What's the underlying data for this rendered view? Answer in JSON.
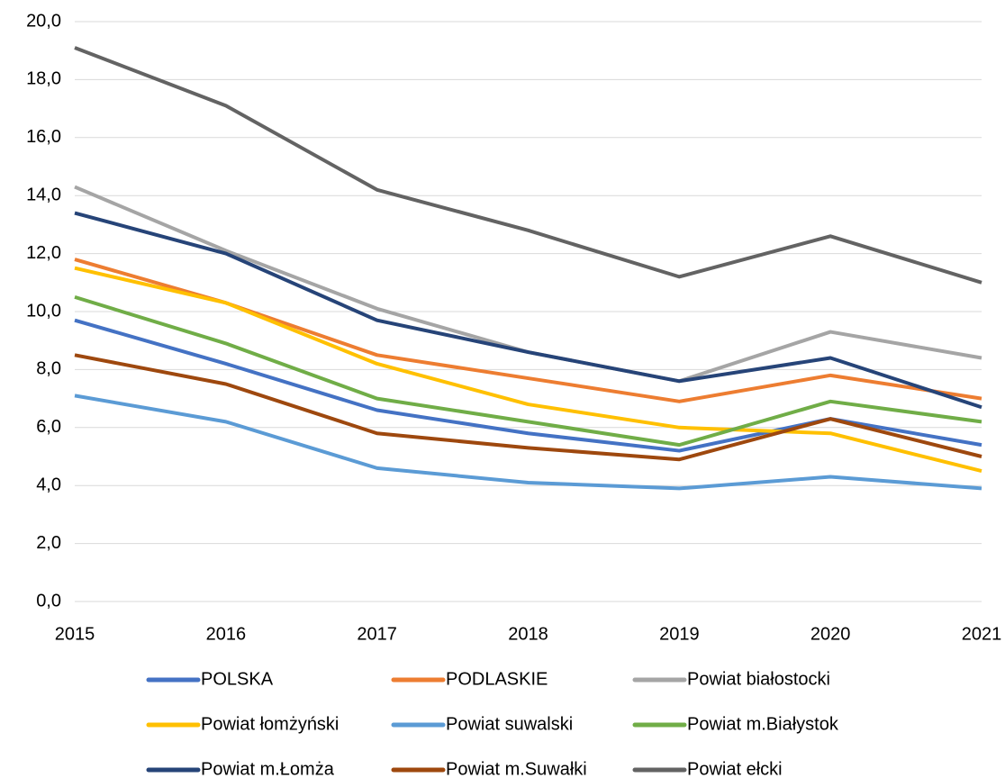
{
  "chart_data": {
    "type": "line",
    "x": [
      2015,
      2016,
      2017,
      2018,
      2019,
      2020,
      2021
    ],
    "xlim": [
      2015,
      2021
    ],
    "xticks": [
      2015,
      2016,
      2017,
      2018,
      2019,
      2020,
      2021
    ],
    "ylim": [
      0,
      20
    ],
    "yticks": [
      {
        "value": 0,
        "label": "0,0"
      },
      {
        "value": 2,
        "label": "2,0"
      },
      {
        "value": 4,
        "label": "4,0"
      },
      {
        "value": 6,
        "label": "6,0"
      },
      {
        "value": 8,
        "label": "8,0"
      },
      {
        "value": 10,
        "label": "10,0"
      },
      {
        "value": 12,
        "label": "12,0"
      },
      {
        "value": 14,
        "label": "14,0"
      },
      {
        "value": 16,
        "label": "16,0"
      },
      {
        "value": 18,
        "label": "18,0"
      },
      {
        "value": 20,
        "label": "20,0"
      }
    ],
    "grid": true,
    "legend": "bottom",
    "series": [
      {
        "name": "POLSKA",
        "color": "#4472c4",
        "values": [
          9.7,
          8.2,
          6.6,
          5.8,
          5.2,
          6.3,
          5.4
        ]
      },
      {
        "name": "PODLASKIE",
        "color": "#ed7d31",
        "values": [
          11.8,
          10.3,
          8.5,
          7.7,
          6.9,
          7.8,
          7.0
        ]
      },
      {
        "name": "Powiat białostocki",
        "color": "#a5a5a5",
        "values": [
          14.3,
          12.1,
          10.1,
          8.6,
          7.6,
          9.3,
          8.4
        ]
      },
      {
        "name": "Powiat łomżyński",
        "color": "#ffc000",
        "values": [
          11.5,
          10.3,
          8.2,
          6.8,
          6.0,
          5.8,
          4.5
        ]
      },
      {
        "name": "Powiat suwalski",
        "color": "#5b9bd5",
        "values": [
          7.1,
          6.2,
          4.6,
          4.1,
          3.9,
          4.3,
          3.9
        ]
      },
      {
        "name": "Powiat m.Białystok",
        "color": "#70ad47",
        "values": [
          10.5,
          8.9,
          7.0,
          6.2,
          5.4,
          6.9,
          6.2
        ]
      },
      {
        "name": "Powiat m.Łomża",
        "color": "#264478",
        "values": [
          13.4,
          12.0,
          9.7,
          8.6,
          7.6,
          8.4,
          6.7
        ]
      },
      {
        "name": "Powiat m.Suwałki",
        "color": "#9e480e",
        "values": [
          8.5,
          7.5,
          5.8,
          5.3,
          4.9,
          6.3,
          5.0
        ]
      },
      {
        "name": "Powiat ełcki",
        "color": "#636363",
        "values": [
          19.1,
          17.1,
          14.2,
          12.8,
          11.2,
          12.6,
          11.0
        ]
      }
    ]
  }
}
